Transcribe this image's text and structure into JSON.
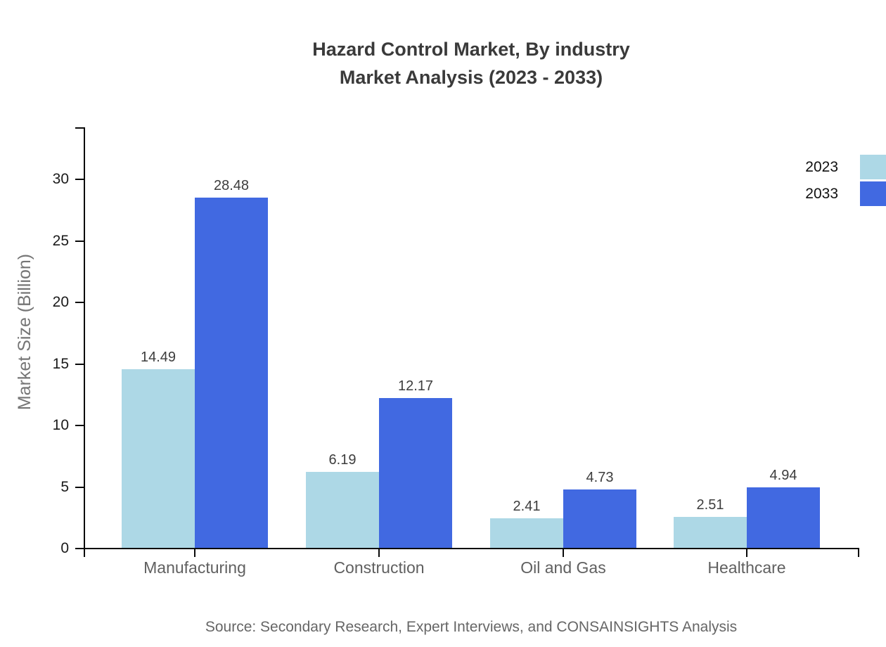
{
  "title": {
    "line1": "Hazard Control Market, By industry",
    "line2": "Market Analysis (2023 - 2033)"
  },
  "source": "Source: Secondary Research, Expert Interviews, and CONSAINSIGHTS Analysis",
  "chart_data": {
    "type": "bar",
    "categories": [
      "Manufacturing",
      "Construction",
      "Oil and Gas",
      "Healthcare"
    ],
    "series": [
      {
        "name": "2023",
        "color": "#ADD8E6",
        "values": [
          14.49,
          6.19,
          2.41,
          2.51
        ]
      },
      {
        "name": "2033",
        "color": "#4169E1",
        "values": [
          28.48,
          12.17,
          4.73,
          4.94
        ]
      }
    ],
    "title": "Hazard Control Market, By industry Market Analysis (2023 - 2033)",
    "ylabel": "Market Size (Billion)",
    "ylim": [
      0,
      34.2
    ],
    "yticks": [
      0,
      5,
      10,
      15,
      20,
      25,
      30
    ],
    "grid": false,
    "value_labels": true,
    "legend_position": "top-right",
    "axis_color": "#0a0a0a"
  }
}
